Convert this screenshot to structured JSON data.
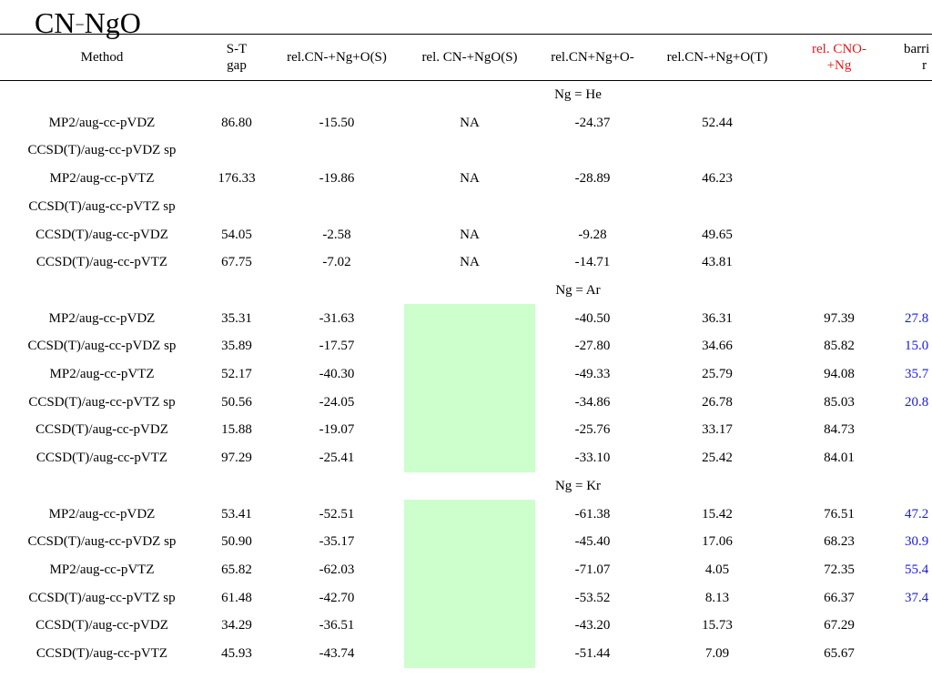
{
  "title": {
    "text": "CN",
    "sup": "−",
    "rest": "NgO"
  },
  "headers": [
    {
      "key": "method",
      "lines": [
        "Method"
      ]
    },
    {
      "key": "st_gap",
      "lines": [
        "S-T",
        "gap"
      ]
    },
    {
      "key": "rel_cn_ng_o_s",
      "lines": [
        "rel.CN-+Ng+O(S)"
      ]
    },
    {
      "key": "rel_cn_ngo_s",
      "lines": [
        "rel. CN-+NgO(S)"
      ]
    },
    {
      "key": "rel_cn_ng_o_minus",
      "lines": [
        "rel.CN+Ng+O-"
      ]
    },
    {
      "key": "rel_cn_ng_o_t",
      "lines": [
        "rel.CN-+Ng+O(T)"
      ]
    },
    {
      "key": "rel_cno_ng",
      "lines": [
        "rel. CNO-",
        "+Ng"
      ]
    },
    {
      "key": "barrier",
      "lines": [
        "barri",
        "r"
      ]
    }
  ],
  "groups": [
    {
      "label": "Ng = He",
      "rows": [
        {
          "method": "MP2/aug-cc-pVDZ",
          "st_gap": "86.80",
          "rel_cn_ng_o_s": "-15.50",
          "rel_cn_ngo_s": "NA",
          "rel_cn_ng_o_minus": "-24.37",
          "rel_cn_ng_o_t": "52.44",
          "rel_cno_ng": "",
          "barrier": ""
        },
        {
          "method": "CCSD(T)/aug-cc-pVDZ sp",
          "st_gap": "",
          "rel_cn_ng_o_s": "",
          "rel_cn_ngo_s": "",
          "rel_cn_ng_o_minus": "",
          "rel_cn_ng_o_t": "",
          "rel_cno_ng": "",
          "barrier": ""
        },
        {
          "method": "MP2/aug-cc-pVTZ",
          "st_gap": "176.33",
          "rel_cn_ng_o_s": "-19.86",
          "rel_cn_ngo_s": "NA",
          "rel_cn_ng_o_minus": "-28.89",
          "rel_cn_ng_o_t": "46.23",
          "rel_cno_ng": "",
          "barrier": ""
        },
        {
          "method": "CCSD(T)/aug-cc-pVTZ sp",
          "st_gap": "",
          "rel_cn_ng_o_s": "",
          "rel_cn_ngo_s": "",
          "rel_cn_ng_o_minus": "",
          "rel_cn_ng_o_t": "",
          "rel_cno_ng": "",
          "barrier": ""
        },
        {
          "method": "CCSD(T)/aug-cc-pVDZ",
          "st_gap": "54.05",
          "rel_cn_ng_o_s": "-2.58",
          "rel_cn_ngo_s": "NA",
          "rel_cn_ng_o_minus": "-9.28",
          "rel_cn_ng_o_t": "49.65",
          "rel_cno_ng": "",
          "barrier": ""
        },
        {
          "method": "CCSD(T)/aug-cc-pVTZ",
          "st_gap": "67.75",
          "rel_cn_ng_o_s": "-7.02",
          "rel_cn_ngo_s": "NA",
          "rel_cn_ng_o_minus": "-14.71",
          "rel_cn_ng_o_t": "43.81",
          "rel_cno_ng": "",
          "barrier": ""
        }
      ]
    },
    {
      "label": "Ng = Ar",
      "rows": [
        {
          "method": "MP2/aug-cc-pVDZ",
          "st_gap": "35.31",
          "rel_cn_ng_o_s": "-31.63",
          "rel_cn_ngo_s": "",
          "rel_cn_ng_o_minus": "-40.50",
          "rel_cn_ng_o_t": "36.31",
          "rel_cno_ng": "97.39",
          "barrier": "27.8"
        },
        {
          "method": "CCSD(T)/aug-cc-pVDZ sp",
          "st_gap": "35.89",
          "rel_cn_ng_o_s": "-17.57",
          "rel_cn_ngo_s": "",
          "rel_cn_ng_o_minus": "-27.80",
          "rel_cn_ng_o_t": "34.66",
          "rel_cno_ng": "85.82",
          "barrier": "15.0"
        },
        {
          "method": "MP2/aug-cc-pVTZ",
          "st_gap": "52.17",
          "rel_cn_ng_o_s": "-40.30",
          "rel_cn_ngo_s": "",
          "rel_cn_ng_o_minus": "-49.33",
          "rel_cn_ng_o_t": "25.79",
          "rel_cno_ng": "94.08",
          "barrier": "35.7"
        },
        {
          "method": "CCSD(T)/aug-cc-pVTZ sp",
          "st_gap": "50.56",
          "rel_cn_ng_o_s": "-24.05",
          "rel_cn_ngo_s": "",
          "rel_cn_ng_o_minus": "-34.86",
          "rel_cn_ng_o_t": "26.78",
          "rel_cno_ng": "85.03",
          "barrier": "20.8"
        },
        {
          "method": "CCSD(T)/aug-cc-pVDZ",
          "st_gap": "15.88",
          "rel_cn_ng_o_s": "-19.07",
          "rel_cn_ngo_s": "",
          "rel_cn_ng_o_minus": "-25.76",
          "rel_cn_ng_o_t": "33.17",
          "rel_cno_ng": "84.73",
          "barrier": ""
        },
        {
          "method": "CCSD(T)/aug-cc-pVTZ",
          "st_gap": "97.29",
          "rel_cn_ng_o_s": "-25.41",
          "rel_cn_ngo_s": "",
          "rel_cn_ng_o_minus": "-33.10",
          "rel_cn_ng_o_t": "25.42",
          "rel_cno_ng": "84.01",
          "barrier": ""
        }
      ]
    },
    {
      "label": "Ng = Kr",
      "rows": [
        {
          "method": "MP2/aug-cc-pVDZ",
          "st_gap": "53.41",
          "rel_cn_ng_o_s": "-52.51",
          "rel_cn_ngo_s": "",
          "rel_cn_ng_o_minus": "-61.38",
          "rel_cn_ng_o_t": "15.42",
          "rel_cno_ng": "76.51",
          "barrier": "47.2"
        },
        {
          "method": "CCSD(T)/aug-cc-pVDZ sp",
          "st_gap": "50.90",
          "rel_cn_ng_o_s": "-35.17",
          "rel_cn_ngo_s": "",
          "rel_cn_ng_o_minus": "-45.40",
          "rel_cn_ng_o_t": "17.06",
          "rel_cno_ng": "68.23",
          "barrier": "30.9"
        },
        {
          "method": "MP2/aug-cc-pVTZ",
          "st_gap": "65.82",
          "rel_cn_ng_o_s": "-62.03",
          "rel_cn_ngo_s": "",
          "rel_cn_ng_o_minus": "-71.07",
          "rel_cn_ng_o_t": "4.05",
          "rel_cno_ng": "72.35",
          "barrier": "55.4"
        },
        {
          "method": "CCSD(T)/aug-cc-pVTZ sp",
          "st_gap": "61.48",
          "rel_cn_ng_o_s": "-42.70",
          "rel_cn_ngo_s": "",
          "rel_cn_ng_o_minus": "-53.52",
          "rel_cn_ng_o_t": "8.13",
          "rel_cno_ng": "66.37",
          "barrier": "37.4"
        },
        {
          "method": "CCSD(T)/aug-cc-pVDZ",
          "st_gap": "34.29",
          "rel_cn_ng_o_s": "-36.51",
          "rel_cn_ngo_s": "",
          "rel_cn_ng_o_minus": "-43.20",
          "rel_cn_ng_o_t": "15.73",
          "rel_cno_ng": "67.29",
          "barrier": ""
        },
        {
          "method": "CCSD(T)/aug-cc-pVTZ",
          "st_gap": "45.93",
          "rel_cn_ng_o_s": "-43.74",
          "rel_cn_ngo_s": "",
          "rel_cn_ng_o_minus": "-51.44",
          "rel_cn_ng_o_t": "7.09",
          "rel_cno_ng": "65.67",
          "barrier": ""
        }
      ]
    }
  ],
  "colors": {
    "highlight_fill": "#ccffcc",
    "header_red": "#e0191b",
    "barrier_blue": "#1a1adc"
  }
}
